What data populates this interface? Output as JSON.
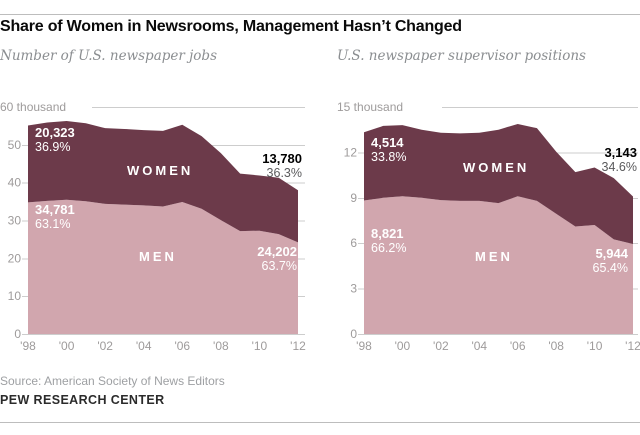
{
  "header": {
    "title": "Share of Women in Newsrooms, Management Hasn’t Changed"
  },
  "footer": {
    "source": "Source: American Society of News Editors",
    "brand": "PEW RESEARCH CENTER"
  },
  "colors": {
    "women_area": "#6c3a4a",
    "men_area": "#d1a6ae",
    "gridline": "#cdcdcd",
    "axis_text": "#9e9b9b",
    "end_pct_text": "#5a5a5c"
  },
  "chart_data": [
    {
      "type": "area",
      "stacked": true,
      "subtitle": "Number of U.S. newspaper jobs",
      "unit_label": "60 thousand",
      "ymax": 60000,
      "ytick_step": 10000,
      "ytick_labels": [
        "0",
        "10",
        "20",
        "30",
        "40",
        "50"
      ],
      "x": [
        1998,
        1999,
        2000,
        2001,
        2002,
        2003,
        2004,
        2005,
        2006,
        2007,
        2008,
        2009,
        2010,
        2011,
        2012
      ],
      "xtick_labels": [
        "'98",
        "'00",
        "'02",
        "'04",
        "'06",
        "'08",
        "'10",
        "'12"
      ],
      "grid": true,
      "series": [
        {
          "name": "MEN",
          "values": [
            34781,
            35200,
            35500,
            35100,
            34400,
            34200,
            34000,
            33700,
            34900,
            33100,
            30100,
            27200,
            27300,
            26400,
            24202
          ]
        },
        {
          "name": "WOMEN",
          "values": [
            20323,
            20700,
            20800,
            20600,
            20000,
            20000,
            19900,
            20000,
            20400,
            19200,
            17700,
            15200,
            14600,
            14900,
            13780
          ]
        }
      ],
      "annotations": {
        "women_start": {
          "value": "20,323",
          "pct": "36.9%"
        },
        "men_start": {
          "value": "34,781",
          "pct": "63.1%"
        },
        "women_end": {
          "value": "13,780",
          "pct": "36.3%"
        },
        "men_end": {
          "value": "24,202",
          "pct": "63.7%"
        }
      }
    },
    {
      "type": "area",
      "stacked": true,
      "subtitle": "U.S. newspaper supervisor positions",
      "unit_label": "15 thousand",
      "ymax": 15000,
      "ytick_step": 3000,
      "ytick_labels": [
        "0",
        "3",
        "6",
        "9",
        "12"
      ],
      "x": [
        1998,
        1999,
        2000,
        2001,
        2002,
        2003,
        2004,
        2005,
        2006,
        2007,
        2008,
        2009,
        2010,
        2011,
        2012
      ],
      "xtick_labels": [
        "'98",
        "'00",
        "'02",
        "'04",
        "'06",
        "'08",
        "'10",
        "'12"
      ],
      "grid": true,
      "series": [
        {
          "name": "MEN",
          "values": [
            8821,
            9000,
            9100,
            9000,
            8850,
            8800,
            8800,
            8650,
            9100,
            8800,
            7950,
            7100,
            7200,
            6250,
            5944
          ]
        },
        {
          "name": "WOMEN",
          "values": [
            4514,
            4750,
            4700,
            4500,
            4450,
            4460,
            4500,
            4850,
            4780,
            4800,
            4100,
            3600,
            3800,
            4050,
            3143
          ]
        }
      ],
      "annotations": {
        "women_start": {
          "value": "4,514",
          "pct": "33.8%"
        },
        "men_start": {
          "value": "8,821",
          "pct": "66.2%"
        },
        "women_end": {
          "value": "3,143",
          "pct": "34.6%"
        },
        "men_end": {
          "value": "5,944",
          "pct": "65.4%"
        }
      }
    }
  ]
}
